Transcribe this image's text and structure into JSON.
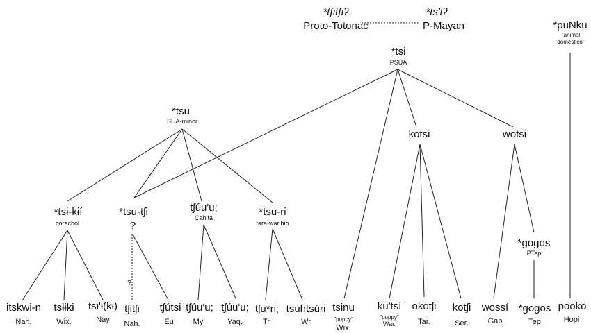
{
  "top": {
    "totonac_form": "*tʃitʃiʔ",
    "totonac_label": "Proto-Totonac",
    "mayan_form": "*ts'iʔ",
    "mayan_label": "P-Mayan"
  },
  "psua": {
    "form": "*tsi",
    "label": "PSUA"
  },
  "punku": {
    "form": "*puNku",
    "gloss1": "\"animal",
    "gloss2": "domestico\""
  },
  "sua_minor": {
    "form": "*tsu",
    "label": "SUA-minor"
  },
  "kotsi": {
    "form": "kotsi"
  },
  "wotsi": {
    "form": "wotsi"
  },
  "corachol": {
    "form": "*tsɨ-kɨí",
    "label": "corachol"
  },
  "tsutshi": {
    "form": "*tsu-tʃi",
    "q1": "?",
    "q2": "?"
  },
  "cahita": {
    "form": "tʃúu'u;",
    "label": "Cahita"
  },
  "tarawarihio": {
    "form": "*tsu-ri",
    "label": "tara-warihio"
  },
  "ptep": {
    "form": "*gogos",
    "label": "PTep"
  },
  "leaves": [
    {
      "form": "itskwi-n",
      "lang": "Nah."
    },
    {
      "form": "tsɨɨkɨ",
      "lang": "Wix."
    },
    {
      "form": "tsɨ'ɨ(kɨ)",
      "lang": "Nay"
    },
    {
      "form": "tʃitʃi",
      "lang": "Nah."
    },
    {
      "form": "tʃútsi",
      "lang": "Eu"
    },
    {
      "form": "tʃúu'u;",
      "lang": "My"
    },
    {
      "form": "tʃúu'u;",
      "lang": "Yaq."
    },
    {
      "form": "tʃu*ri;",
      "lang": "Tr"
    },
    {
      "form": "tsuhtsúri",
      "lang": "Wr"
    },
    {
      "form": "tsinu",
      "gloss": "\"puppy\"",
      "lang": "Wix."
    },
    {
      "form": "ku'tsí",
      "gloss": "\"puppy\"",
      "lang": "War."
    },
    {
      "form": "okotʃi",
      "lang": "Tar."
    },
    {
      "form": "kotʃi",
      "lang": "Ser."
    },
    {
      "form": "wossí",
      "lang": "Gab"
    },
    {
      "form": "*gogos",
      "lang": "Tep"
    },
    {
      "form": "pooko",
      "lang": "Hopi"
    }
  ]
}
